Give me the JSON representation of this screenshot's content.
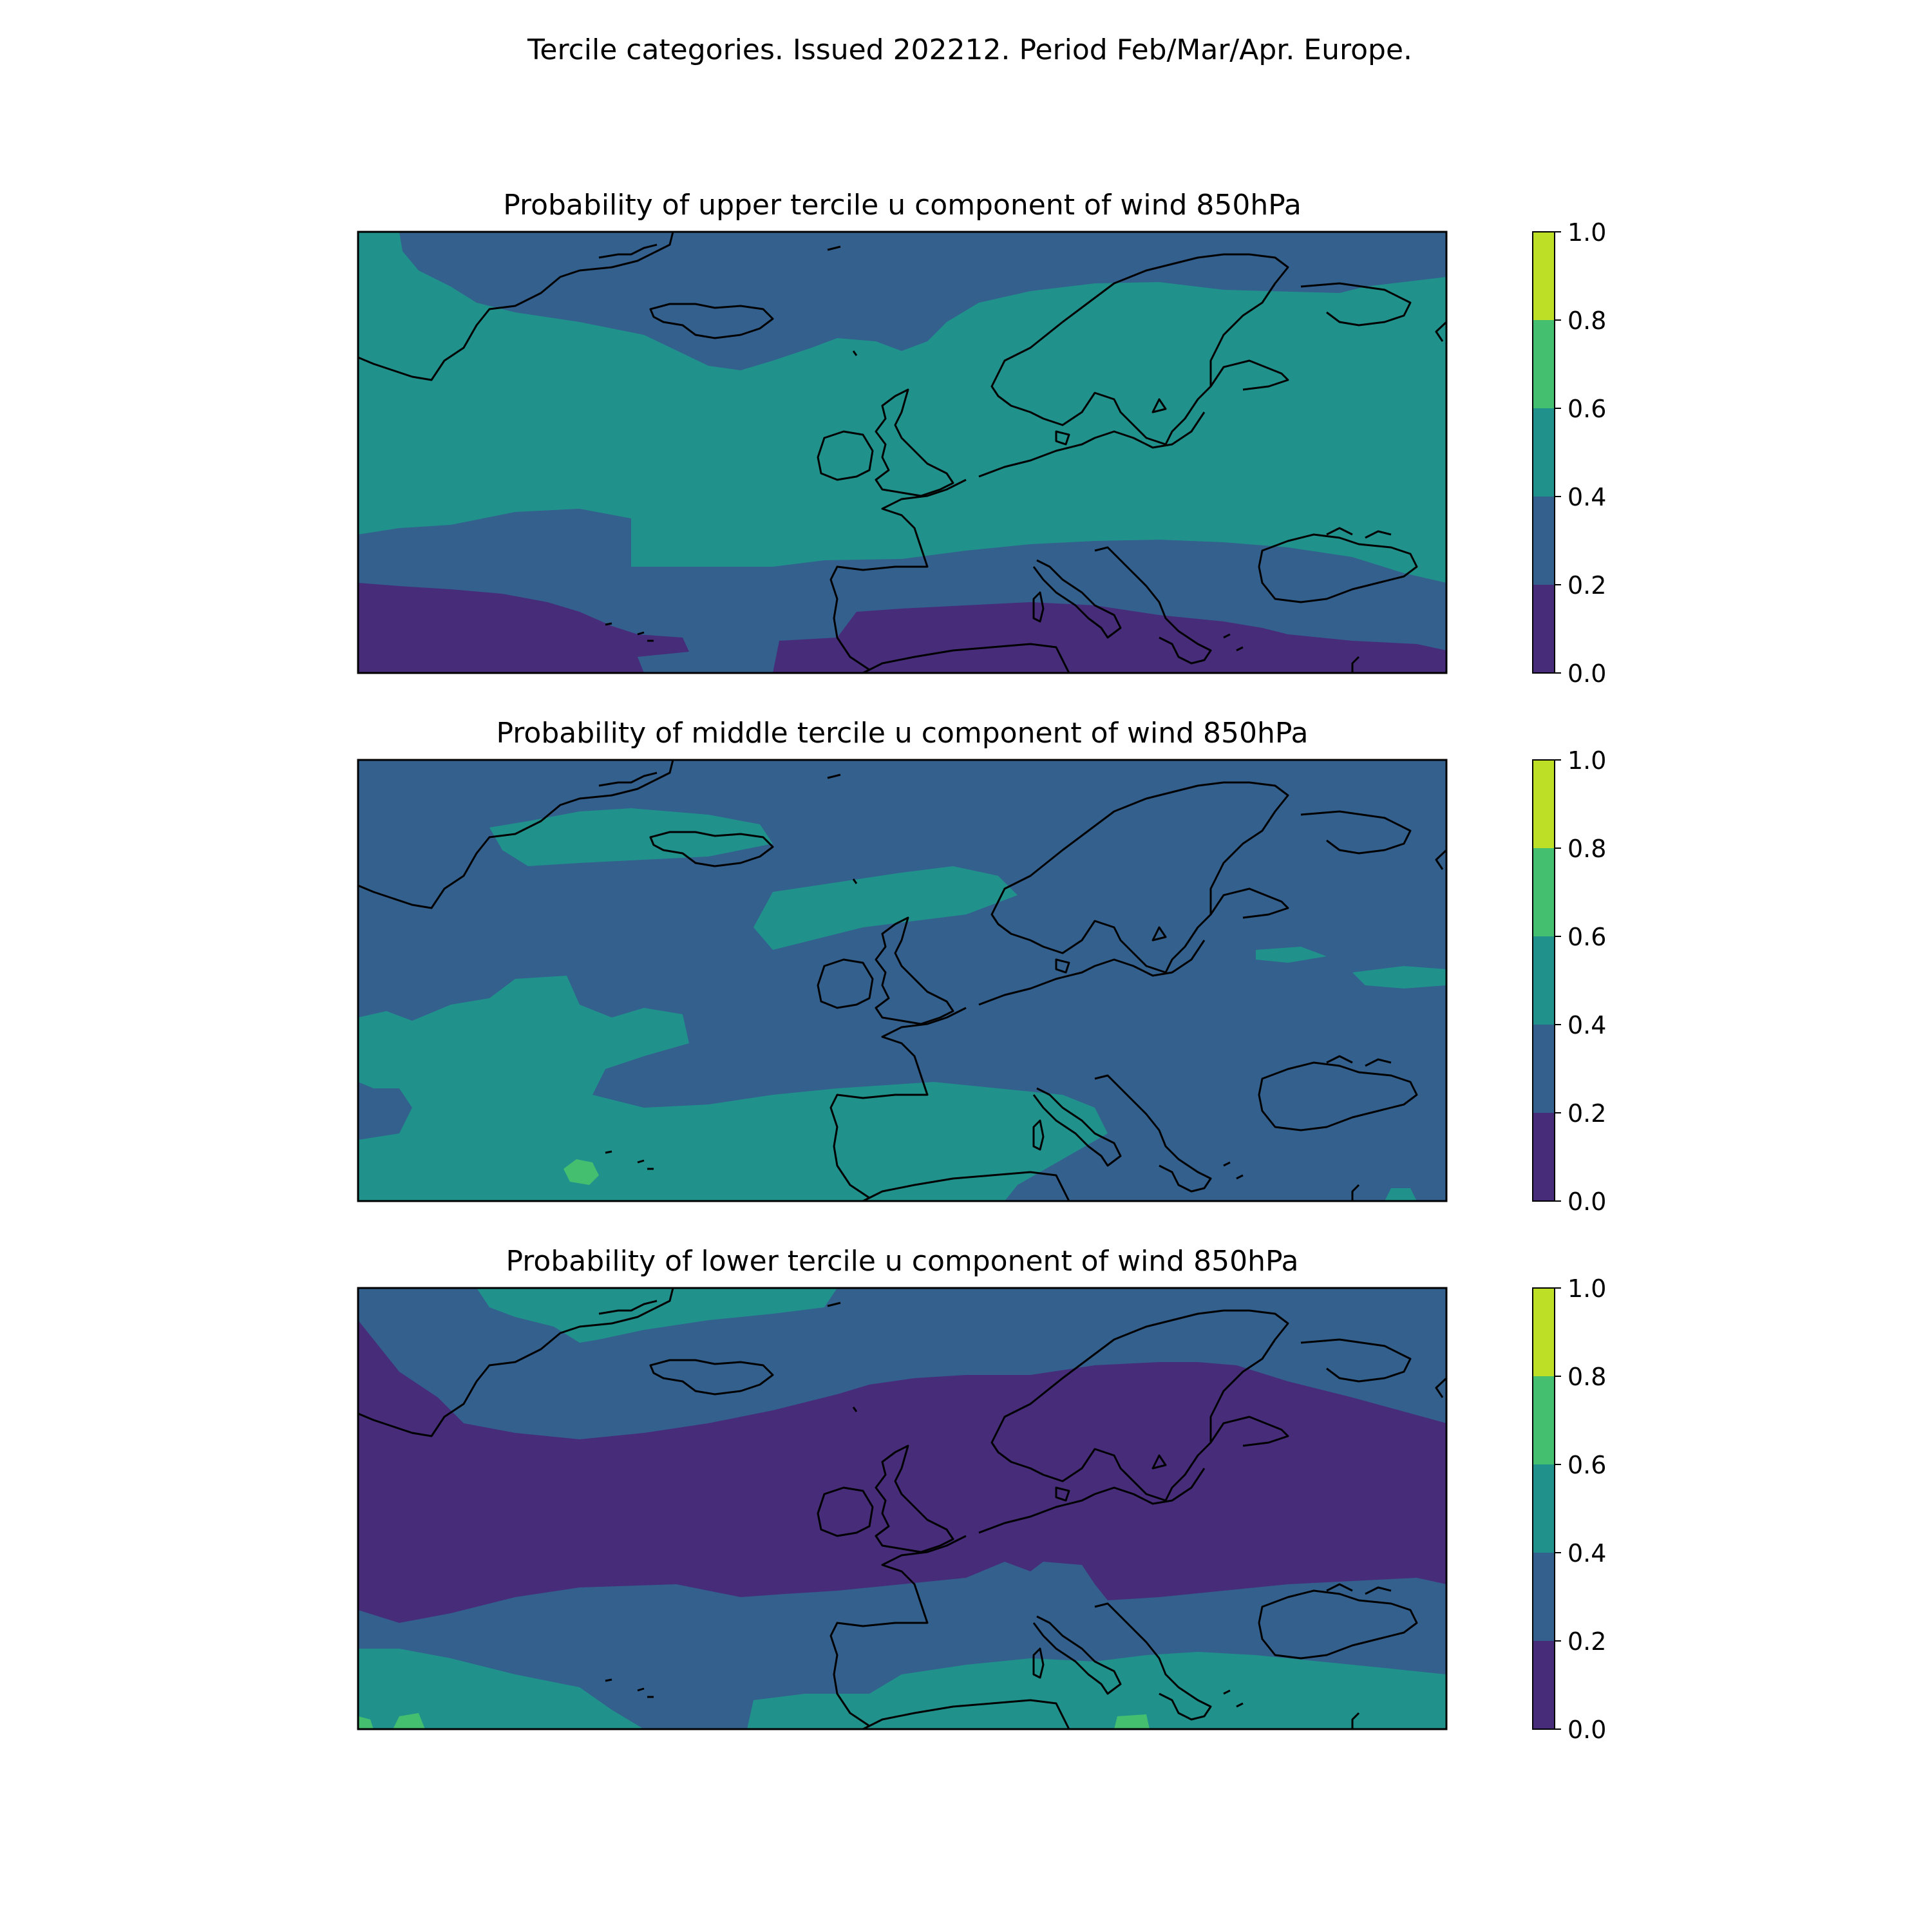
{
  "figure": {
    "title": "Tercile categories. Issued 202212. Period Feb/Mar/Apr. Europe."
  },
  "colorscale": {
    "levels": [
      0.0,
      0.2,
      0.4,
      0.6,
      0.8,
      1.0
    ],
    "tick_labels": [
      "0.0",
      "0.2",
      "0.4",
      "0.6",
      "0.8",
      "1.0"
    ],
    "colors": [
      "#472c7a",
      "#33608d",
      "#21918c",
      "#44bf70",
      "#bddf26"
    ]
  },
  "chart_data": [
    {
      "type": "filled-contour-map",
      "title": "Probability of upper tercile u component of wind 850hPa",
      "region": "Europe",
      "dominant_categories": {
        "north_atlantic_and_central_europe": "0.4-0.6",
        "arctic_and_greenland_sea": "0.2-0.4",
        "subtropical_atlantic_and_north_africa": "0.0-0.2",
        "iberia_and_black_sea": "0.2-0.4"
      }
    },
    {
      "type": "filled-contour-map",
      "title": "Probability of middle tercile u component of wind 850hPa",
      "region": "Europe",
      "dominant_categories": {
        "most_of_domain": "0.2-0.4",
        "southwest_atlantic_and_mediterranean": "0.4-0.6",
        "small_patch_near_canary_islands": "0.6-0.8"
      }
    },
    {
      "type": "filled-contour-map",
      "title": "Probability of lower tercile u component of wind 850hPa",
      "region": "Europe",
      "dominant_categories": {
        "central_band_atlantic_to_russia": "0.0-0.2",
        "arctic_and_northern_atlantic": "0.2-0.4",
        "southern_atlantic_and_north_africa": "0.4-0.6",
        "small_patches_southwest_and_libya": "0.6-0.8"
      }
    }
  ]
}
